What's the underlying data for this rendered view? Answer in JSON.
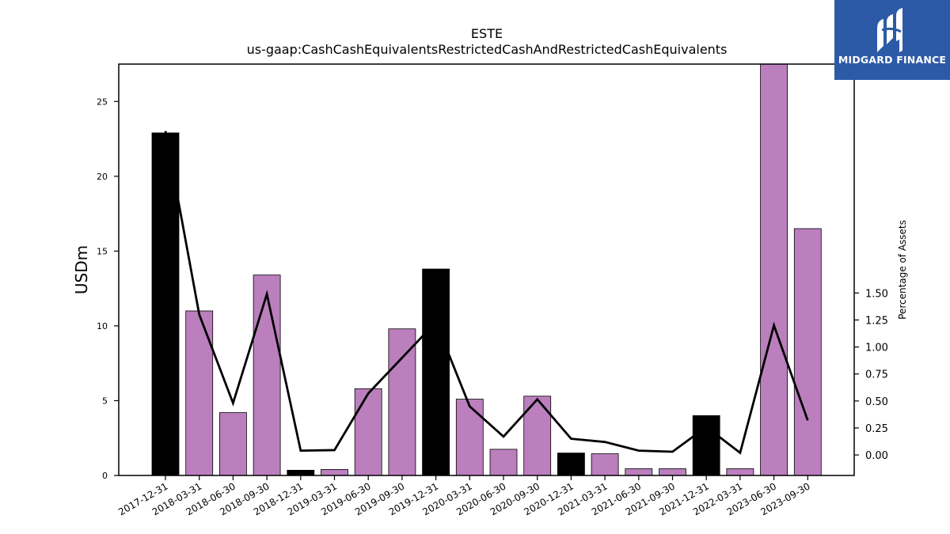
{
  "chart_data": {
    "type": "bar",
    "title": "ESTE",
    "subtitle": "us-gaap:CashCashEquivalentsRestrictedCashAndRestrictedCashEquivalents",
    "ylabel": "USDm",
    "y2label": "Percentage of Assets",
    "ylim": [
      0,
      27.5
    ],
    "y2lim": [
      -0.19,
      3.62
    ],
    "yticks": [
      0,
      5,
      10,
      15,
      20,
      25
    ],
    "y2ticks": [
      "0.00",
      "0.25",
      "0.50",
      "0.75",
      "1.00",
      "1.25",
      "1.50"
    ],
    "categories": [
      "2017-12-31",
      "2018-03-31",
      "2018-06-30",
      "2018-09-30",
      "2018-12-31",
      "2019-03-31",
      "2019-06-30",
      "2019-09-30",
      "2019-12-31",
      "2020-03-31",
      "2020-06-30",
      "2020-09-30",
      "2020-12-31",
      "2021-03-31",
      "2021-06-30",
      "2021-09-30",
      "2021-12-31",
      "2022-03-31",
      "2023-06-30",
      "2023-09-30"
    ],
    "series": [
      {
        "values": [
          22.9,
          11.0,
          4.2,
          13.4,
          0.35,
          0.4,
          5.8,
          9.8,
          13.8,
          5.1,
          1.75,
          5.3,
          1.5,
          1.45,
          0.45,
          0.45,
          4.0,
          0.45,
          27.5,
          16.5
        ],
        "colors": [
          "#000000",
          "#bb7fbd",
          "#bb7fbd",
          "#bb7fbd",
          "#000000",
          "#bb7fbd",
          "#bb7fbd",
          "#bb7fbd",
          "#000000",
          "#bb7fbd",
          "#bb7fbd",
          "#bb7fbd",
          "#000000",
          "#bb7fbd",
          "#bb7fbd",
          "#bb7fbd",
          "#000000",
          "#bb7fbd",
          "#bb7fbd",
          "#bb7fbd"
        ]
      },
      {
        "axis": "right",
        "type": "line",
        "color": "#000000",
        "values": [
          3.0,
          1.3,
          0.48,
          1.49,
          0.04,
          0.045,
          0.57,
          0.9,
          1.23,
          0.45,
          0.17,
          0.515,
          0.15,
          0.12,
          0.04,
          0.03,
          0.26,
          0.02,
          1.2,
          0.32
        ]
      }
    ],
    "grid": false,
    "legend": "none"
  },
  "logo": {
    "text": "MIDGARD FINANCE",
    "background": "#2d5aa6",
    "icon": "midgard-logo-icon"
  }
}
